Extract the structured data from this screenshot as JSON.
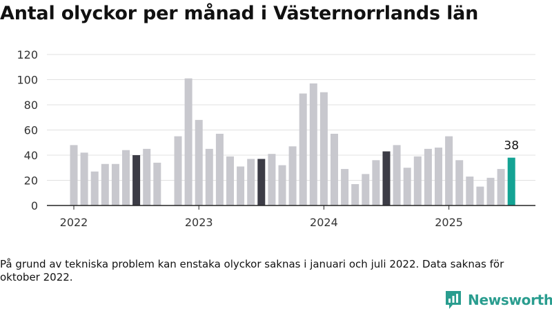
{
  "title": "Antal olyckor per månad i Västernorrlands län",
  "note": "På grund av tekniska problem kan enstaka olyckor saknas i januari och juli 2022. Data saknas för oktober 2022.",
  "brand": {
    "name": "Newsworthy",
    "color": "#2a9d8f"
  },
  "colors": {
    "bar": "#c8c8ce",
    "highlight": "#3c3c46",
    "latest": "#14a394",
    "grid": "#e0e0e0",
    "axis": "#222222"
  },
  "chart_data": {
    "type": "bar",
    "title": "Antal olyckor per månad i Västernorrlands län",
    "xlabel": "",
    "ylabel": "",
    "ylim": [
      0,
      120
    ],
    "yticks": [
      0,
      20,
      40,
      60,
      80,
      100,
      120
    ],
    "grid": true,
    "legend": "none",
    "xticks": [
      {
        "label": "2022",
        "index": 0
      },
      {
        "label": "2023",
        "index": 12
      },
      {
        "label": "2024",
        "index": 24
      },
      {
        "label": "2025",
        "index": 36
      }
    ],
    "categories": [
      "2022-01",
      "2022-02",
      "2022-03",
      "2022-04",
      "2022-05",
      "2022-06",
      "2022-07",
      "2022-08",
      "2022-09",
      "2022-10",
      "2022-11",
      "2022-12",
      "2023-01",
      "2023-02",
      "2023-03",
      "2023-04",
      "2023-05",
      "2023-06",
      "2023-07",
      "2023-08",
      "2023-09",
      "2023-10",
      "2023-11",
      "2023-12",
      "2024-01",
      "2024-02",
      "2024-03",
      "2024-04",
      "2024-05",
      "2024-06",
      "2024-07",
      "2024-08",
      "2024-09",
      "2024-10",
      "2024-11",
      "2024-12",
      "2025-01",
      "2025-02",
      "2025-03",
      "2025-04",
      "2025-05",
      "2025-06",
      "2025-07"
    ],
    "values": [
      48,
      42,
      27,
      33,
      33,
      44,
      40,
      45,
      34,
      null,
      55,
      101,
      68,
      45,
      57,
      39,
      31,
      37,
      37,
      41,
      32,
      47,
      89,
      97,
      90,
      57,
      29,
      17,
      25,
      36,
      43,
      48,
      30,
      39,
      45,
      46,
      55,
      36,
      23,
      15,
      22,
      29,
      38
    ],
    "highlight_indices": [
      6,
      18,
      30
    ],
    "latest": {
      "index": 42,
      "label": "38"
    }
  }
}
